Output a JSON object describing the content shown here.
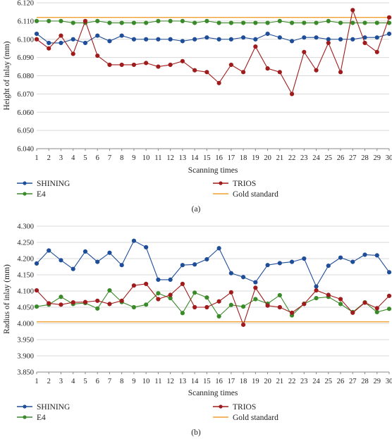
{
  "chart_data": [
    {
      "type": "line",
      "caption": "(a)",
      "xlabel": "Scanning times",
      "ylabel": "Height of inlay (mm)",
      "x": [
        1,
        2,
        3,
        4,
        5,
        6,
        7,
        8,
        9,
        10,
        11,
        12,
        13,
        14,
        15,
        16,
        17,
        18,
        19,
        20,
        21,
        22,
        23,
        24,
        25,
        26,
        27,
        28,
        29,
        30
      ],
      "ylim": [
        6.04,
        6.12
      ],
      "yticks": [
        "6.040",
        "6.050",
        "6.060",
        "6.070",
        "6.080",
        "6.090",
        "6.100",
        "6.110",
        "6.120"
      ],
      "grid": "horizontal",
      "legend_position": "bottom",
      "series": [
        {
          "name": "SHINING",
          "color": "#1f4e99",
          "marker": true,
          "values": [
            6.103,
            6.098,
            6.098,
            6.1,
            6.098,
            6.102,
            6.099,
            6.102,
            6.1,
            6.1,
            6.1,
            6.1,
            6.099,
            6.1,
            6.101,
            6.1,
            6.1,
            6.101,
            6.1,
            6.103,
            6.101,
            6.099,
            6.101,
            6.101,
            6.1,
            6.1,
            6.1,
            6.101,
            6.101,
            6.103
          ]
        },
        {
          "name": "TRIOS",
          "color": "#a01c1c",
          "marker": true,
          "values": [
            6.1,
            6.095,
            6.102,
            6.092,
            6.11,
            6.091,
            6.086,
            6.086,
            6.086,
            6.087,
            6.085,
            6.086,
            6.088,
            6.083,
            6.082,
            6.076,
            6.086,
            6.082,
            6.096,
            6.084,
            6.082,
            6.07,
            6.093,
            6.083,
            6.098,
            6.082,
            6.116,
            6.098,
            6.093,
            6.112
          ]
        },
        {
          "name": "E4",
          "color": "#3a8a2a",
          "marker": true,
          "values": [
            6.11,
            6.11,
            6.11,
            6.109,
            6.109,
            6.11,
            6.109,
            6.109,
            6.109,
            6.109,
            6.11,
            6.11,
            6.11,
            6.109,
            6.11,
            6.109,
            6.109,
            6.109,
            6.109,
            6.109,
            6.11,
            6.109,
            6.109,
            6.109,
            6.11,
            6.109,
            6.109,
            6.109,
            6.109,
            6.109
          ]
        },
        {
          "name": "Gold standard",
          "color": "#f0a030",
          "marker": false,
          "values": [
            6.112,
            6.112,
            6.112,
            6.112,
            6.112,
            6.112,
            6.112,
            6.112,
            6.112,
            6.112,
            6.112,
            6.112,
            6.112,
            6.112,
            6.112,
            6.112,
            6.112,
            6.112,
            6.112,
            6.112,
            6.112,
            6.112,
            6.112,
            6.112,
            6.112,
            6.112,
            6.112,
            6.112,
            6.112,
            6.112
          ]
        }
      ]
    },
    {
      "type": "line",
      "caption": "(b)",
      "xlabel": "Scanning times",
      "ylabel": "Radius of inlay (mm)",
      "x": [
        1,
        2,
        3,
        4,
        5,
        6,
        7,
        8,
        9,
        10,
        11,
        12,
        13,
        14,
        15,
        16,
        17,
        18,
        19,
        20,
        21,
        22,
        23,
        24,
        25,
        26,
        27,
        28,
        29,
        30
      ],
      "ylim": [
        3.85,
        4.3
      ],
      "yticks": [
        "3.850",
        "3.900",
        "3.950",
        "4.000",
        "4.050",
        "4.100",
        "4.150",
        "4.200",
        "4.250",
        "4.300"
      ],
      "grid": "horizontal",
      "legend_position": "bottom",
      "series": [
        {
          "name": "SHINING",
          "color": "#1f4e99",
          "marker": true,
          "values": [
            4.185,
            4.225,
            4.195,
            4.168,
            4.222,
            4.19,
            4.218,
            4.18,
            4.255,
            4.235,
            4.135,
            4.135,
            4.18,
            4.182,
            4.198,
            4.232,
            4.155,
            4.143,
            4.127,
            4.18,
            4.186,
            4.19,
            4.2,
            4.114,
            4.178,
            4.203,
            4.19,
            4.212,
            4.21,
            4.158
          ]
        },
        {
          "name": "TRIOS",
          "color": "#a01c1c",
          "marker": true,
          "values": [
            4.102,
            4.062,
            4.058,
            4.065,
            4.066,
            4.07,
            4.06,
            4.07,
            4.117,
            4.122,
            4.075,
            4.088,
            4.122,
            4.05,
            4.05,
            4.068,
            4.096,
            3.996,
            4.11,
            4.055,
            4.05,
            4.033,
            4.06,
            4.102,
            4.088,
            4.075,
            4.033,
            4.064,
            4.047,
            4.085
          ]
        },
        {
          "name": "E4",
          "color": "#3a8a2a",
          "marker": true,
          "values": [
            4.052,
            4.058,
            4.082,
            4.06,
            4.063,
            4.046,
            4.102,
            4.066,
            4.05,
            4.058,
            4.093,
            4.078,
            4.032,
            4.095,
            4.08,
            4.022,
            4.057,
            4.052,
            4.075,
            4.061,
            4.087,
            4.025,
            4.061,
            4.078,
            4.082,
            4.06,
            4.035,
            4.065,
            4.035,
            4.045
          ]
        },
        {
          "name": "Gold standard",
          "color": "#f0a030",
          "marker": false,
          "values": [
            4.005,
            4.005,
            4.005,
            4.005,
            4.005,
            4.005,
            4.005,
            4.005,
            4.005,
            4.005,
            4.005,
            4.005,
            4.005,
            4.005,
            4.005,
            4.005,
            4.005,
            4.005,
            4.005,
            4.005,
            4.005,
            4.005,
            4.005,
            4.005,
            4.005,
            4.005,
            4.005,
            4.005,
            4.005,
            4.005
          ]
        }
      ]
    }
  ]
}
